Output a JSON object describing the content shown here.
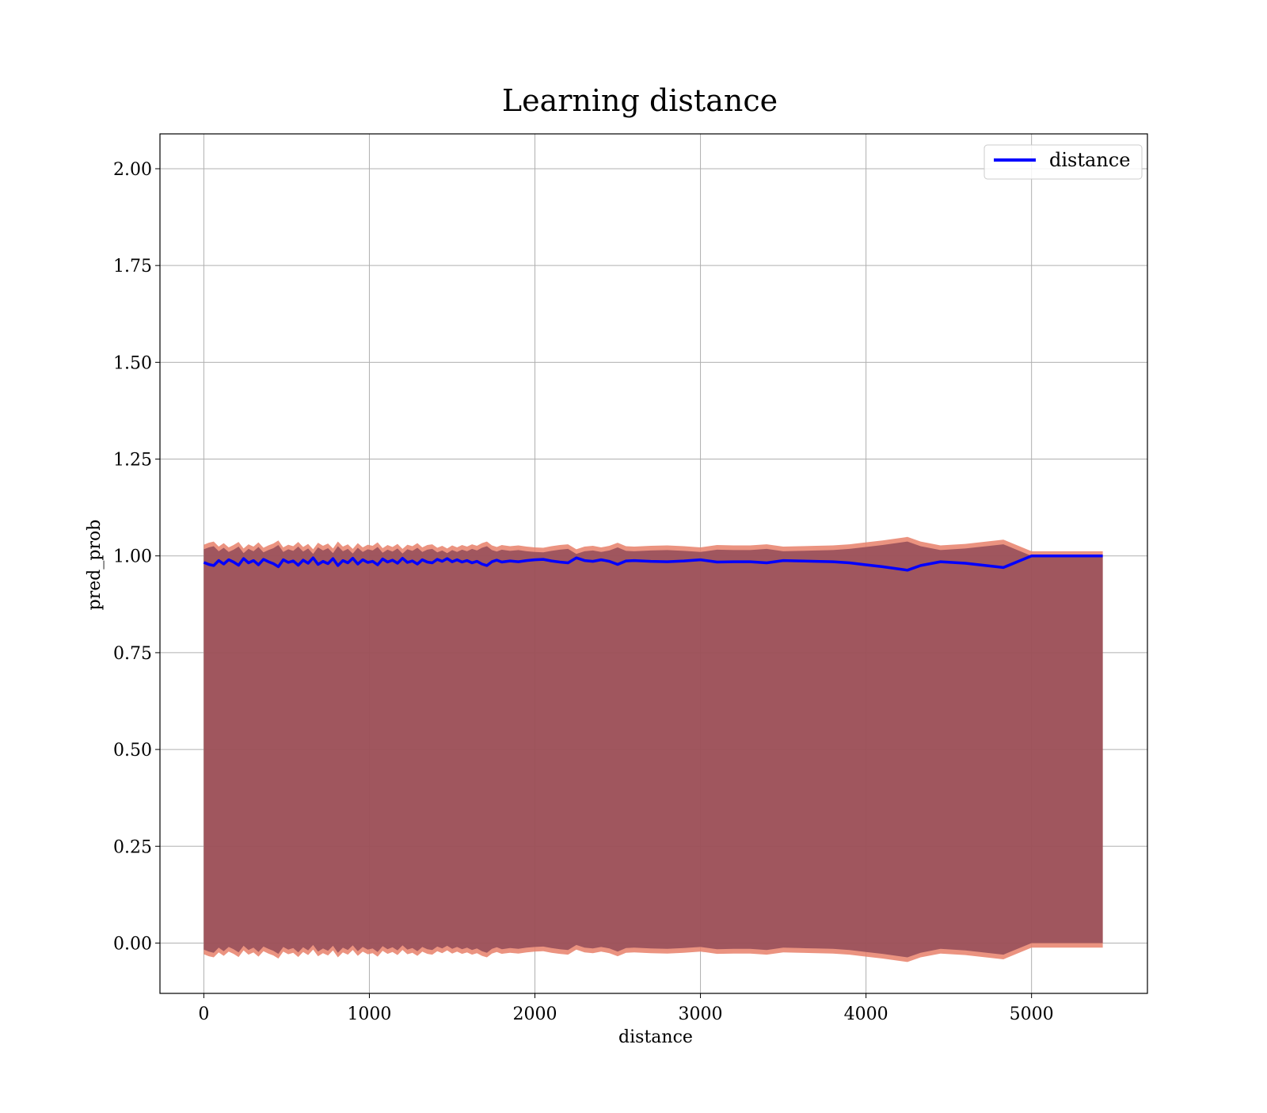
{
  "chart_data": {
    "type": "line",
    "title": "Learning distance",
    "xlabel": "distance",
    "ylabel": "pred_prob",
    "xlim": [
      -265,
      5700
    ],
    "ylim": [
      -0.13,
      2.09
    ],
    "x_ticks": [
      0,
      1000,
      2000,
      3000,
      4000,
      5000
    ],
    "x_tick_labels": [
      "0",
      "1000",
      "2000",
      "3000",
      "4000",
      "5000"
    ],
    "y_ticks": [
      0.0,
      0.25,
      0.5,
      0.75,
      1.0,
      1.25,
      1.5,
      1.75,
      2.0
    ],
    "y_tick_labels": [
      "0.00",
      "0.25",
      "0.50",
      "0.75",
      "1.00",
      "1.25",
      "1.50",
      "1.75",
      "2.00"
    ],
    "grid": true,
    "legend": {
      "placement": "top-right",
      "entries": [
        "distance"
      ]
    },
    "colors": {
      "line": "#0000ff",
      "band_fill": "#8b4555",
      "band_edge": "#e8806a",
      "grid": "#b0b0b0"
    },
    "series": [
      {
        "name": "distance",
        "x": [
          0,
          30,
          60,
          90,
          120,
          150,
          180,
          210,
          240,
          270,
          300,
          330,
          360,
          390,
          420,
          450,
          480,
          510,
          540,
          570,
          600,
          630,
          660,
          690,
          720,
          750,
          780,
          810,
          840,
          870,
          900,
          930,
          960,
          990,
          1020,
          1050,
          1080,
          1110,
          1140,
          1170,
          1200,
          1230,
          1260,
          1290,
          1320,
          1350,
          1380,
          1410,
          1440,
          1470,
          1500,
          1530,
          1560,
          1590,
          1620,
          1650,
          1680,
          1710,
          1740,
          1770,
          1800,
          1850,
          1900,
          1950,
          2000,
          2050,
          2100,
          2150,
          2200,
          2250,
          2300,
          2350,
          2400,
          2450,
          2500,
          2550,
          2600,
          2700,
          2800,
          2900,
          3000,
          3100,
          3200,
          3300,
          3400,
          3500,
          3600,
          3700,
          3800,
          3900,
          4000,
          4100,
          4250,
          4330,
          4450,
          4600,
          4830,
          5000,
          5200,
          5430
        ],
        "y": [
          0.983,
          0.978,
          0.975,
          0.988,
          0.979,
          0.99,
          0.984,
          0.976,
          0.993,
          0.982,
          0.988,
          0.977,
          0.991,
          0.985,
          0.98,
          0.972,
          0.99,
          0.983,
          0.987,
          0.976,
          0.989,
          0.981,
          0.995,
          0.978,
          0.986,
          0.98,
          0.993,
          0.975,
          0.988,
          0.982,
          0.994,
          0.979,
          0.99,
          0.983,
          0.986,
          0.977,
          0.992,
          0.984,
          0.989,
          0.981,
          0.994,
          0.983,
          0.987,
          0.979,
          0.99,
          0.984,
          0.982,
          0.991,
          0.986,
          0.993,
          0.985,
          0.99,
          0.984,
          0.988,
          0.982,
          0.986,
          0.979,
          0.975,
          0.985,
          0.989,
          0.984,
          0.987,
          0.985,
          0.988,
          0.99,
          0.991,
          0.987,
          0.984,
          0.982,
          0.995,
          0.988,
          0.986,
          0.99,
          0.986,
          0.978,
          0.987,
          0.988,
          0.986,
          0.985,
          0.987,
          0.99,
          0.984,
          0.985,
          0.985,
          0.982,
          0.988,
          0.987,
          0.986,
          0.985,
          0.982,
          0.977,
          0.972,
          0.963,
          0.975,
          0.985,
          0.981,
          0.97,
          1.0,
          1.0,
          1.0
        ]
      }
    ],
    "band": {
      "upper": "2 - y",
      "lower": "y - 1"
    }
  }
}
